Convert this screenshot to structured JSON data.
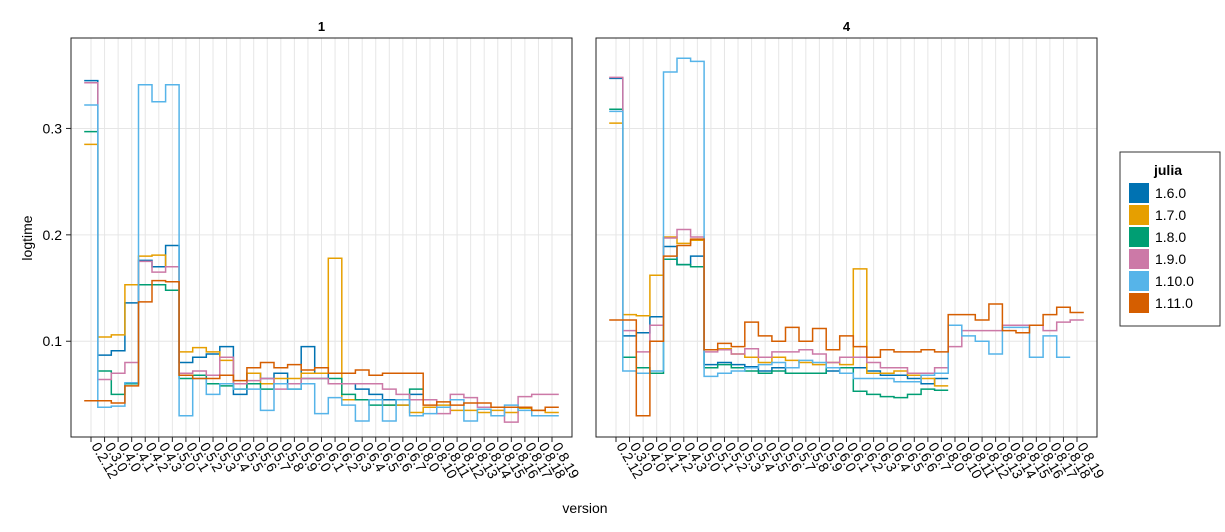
{
  "chart_data": {
    "type": "line",
    "step": true,
    "xlabel": "version",
    "ylabel": "logtime",
    "ylim": [
      0.01,
      0.385
    ],
    "yticks": [
      0.1,
      0.2,
      0.3
    ],
    "ytick_labels": [
      "0.1",
      "0.2",
      "0.3"
    ],
    "categories": [
      "0.2.12",
      "0.3.0",
      "0.4.0",
      "0.4.1",
      "0.4.2",
      "0.4.3",
      "0.5.0",
      "0.5.1",
      "0.5.2",
      "0.5.3",
      "0.5.4",
      "0.5.5",
      "0.5.6",
      "0.5.7",
      "0.5.8",
      "0.5.9",
      "0.6.0",
      "0.6.1",
      "0.6.2",
      "0.6.3",
      "0.6.4",
      "0.6.5",
      "0.6.6",
      "0.6.7",
      "0.8.0",
      "0.8.10",
      "0.8.11",
      "0.8.12",
      "0.8.13",
      "0.8.14",
      "0.8.15",
      "0.8.16",
      "0.8.17",
      "0.8.18",
      "0.8.19"
    ],
    "legend": {
      "title": "julia",
      "position": "right",
      "items": [
        {
          "label": "1.6.0",
          "color": "#0072b2"
        },
        {
          "label": "1.7.0",
          "color": "#e69f00"
        },
        {
          "label": "1.8.0",
          "color": "#009e73"
        },
        {
          "label": "1.9.0",
          "color": "#cc79a7"
        },
        {
          "label": "1.10.0",
          "color": "#56b4e9"
        },
        {
          "label": "1.11.0",
          "color": "#d55e00"
        }
      ]
    },
    "panels": [
      {
        "title": "1",
        "series": [
          {
            "name": "1.6.0",
            "values": [
              0.345,
              0.087,
              0.091,
              0.136,
              0.176,
              0.17,
              0.19,
              0.08,
              0.085,
              0.088,
              0.095,
              0.05,
              0.07,
              0.065,
              0.07,
              0.06,
              0.095,
              0.07,
              0.06,
              0.06,
              0.055,
              0.05,
              0.045,
              0.04,
              0.05,
              null,
              null,
              null,
              null,
              null,
              null,
              null,
              null,
              null,
              null
            ]
          },
          {
            "name": "1.7.0",
            "values": [
              0.285,
              0.104,
              0.106,
              0.153,
              0.18,
              0.181,
              0.17,
              0.09,
              0.094,
              0.09,
              0.082,
              0.06,
              0.07,
              0.06,
              0.065,
              0.065,
              0.07,
              0.07,
              0.178,
              0.045,
              0.045,
              0.045,
              0.04,
              0.04,
              0.033,
              0.038,
              0.04,
              0.035,
              0.035,
              0.033,
              0.035,
              0.033,
              0.037,
              0.035,
              0.033
            ]
          },
          {
            "name": "1.8.0",
            "values": [
              0.297,
              0.072,
              0.05,
              0.06,
              0.153,
              0.153,
              0.148,
              0.065,
              0.068,
              0.06,
              0.058,
              0.055,
              0.06,
              0.055,
              0.06,
              0.055,
              0.065,
              0.065,
              0.065,
              0.05,
              0.045,
              0.04,
              0.04,
              0.045,
              0.055,
              null,
              null,
              null,
              null,
              null,
              null,
              null,
              null,
              null,
              null
            ]
          },
          {
            "name": "1.9.0",
            "values": [
              0.343,
              0.064,
              0.07,
              0.08,
              0.175,
              0.165,
              0.17,
              0.07,
              0.072,
              0.068,
              0.085,
              0.06,
              0.063,
              0.065,
              0.055,
              0.06,
              0.065,
              0.065,
              0.06,
              0.06,
              0.06,
              0.06,
              0.055,
              0.05,
              0.045,
              0.045,
              0.032,
              0.05,
              0.047,
              0.038,
              0.038,
              0.024,
              0.048,
              0.05,
              0.05
            ]
          },
          {
            "name": "1.10.0",
            "values": [
              0.322,
              0.038,
              0.039,
              0.061,
              0.341,
              0.325,
              0.341,
              0.03,
              0.065,
              0.05,
              0.06,
              0.055,
              0.055,
              0.035,
              0.06,
              0.055,
              0.06,
              0.032,
              0.047,
              0.04,
              0.025,
              0.045,
              0.025,
              0.045,
              0.03,
              0.032,
              0.038,
              0.045,
              0.025,
              0.036,
              0.03,
              0.04,
              0.035,
              0.03,
              0.03
            ]
          },
          {
            "name": "1.11.0",
            "values": [
              0.044,
              0.044,
              0.042,
              0.058,
              0.137,
              0.157,
              0.156,
              0.068,
              0.065,
              0.065,
              0.068,
              0.063,
              0.075,
              0.08,
              0.075,
              0.078,
              0.073,
              0.075,
              0.07,
              0.07,
              0.073,
              0.068,
              0.07,
              0.07,
              0.07,
              0.04,
              0.043,
              0.04,
              0.042,
              0.042,
              0.038,
              0.038,
              0.038,
              0.035,
              0.038
            ]
          }
        ]
      },
      {
        "title": "4",
        "series": [
          {
            "name": "1.6.0",
            "values": [
              0.347,
              0.105,
              0.108,
              0.123,
              0.189,
              0.172,
              0.18,
              0.078,
              0.08,
              0.078,
              0.076,
              0.072,
              0.075,
              0.07,
              0.07,
              0.07,
              0.072,
              0.075,
              0.075,
              0.072,
              0.068,
              0.068,
              0.065,
              0.06,
              0.065,
              null,
              null,
              null,
              null,
              null,
              null,
              null,
              null,
              null,
              null
            ]
          },
          {
            "name": "1.7.0",
            "values": [
              0.305,
              0.125,
              0.124,
              0.162,
              0.198,
              0.192,
              0.195,
              0.092,
              0.093,
              0.088,
              0.085,
              0.08,
              0.085,
              0.082,
              0.08,
              0.078,
              0.08,
              0.078,
              0.168,
              0.07,
              0.07,
              0.072,
              0.068,
              0.065,
              0.058,
              null,
              null,
              null,
              null,
              null,
              null,
              null,
              null,
              null,
              null
            ]
          },
          {
            "name": "1.8.0",
            "values": [
              0.318,
              0.085,
              0.075,
              0.07,
              0.177,
              0.172,
              0.17,
              0.075,
              0.078,
              0.075,
              0.072,
              0.07,
              0.072,
              0.07,
              0.07,
              0.07,
              0.075,
              0.075,
              0.053,
              0.05,
              0.048,
              0.047,
              0.05,
              0.055,
              0.054,
              null,
              null,
              null,
              null,
              null,
              null,
              null,
              null,
              null,
              null
            ]
          },
          {
            "name": "1.9.0",
            "values": [
              0.348,
              0.11,
              0.09,
              0.115,
              0.197,
              0.205,
              0.198,
              0.09,
              0.092,
              0.088,
              0.093,
              0.085,
              0.09,
              0.09,
              0.092,
              0.088,
              0.08,
              0.085,
              0.085,
              0.08,
              0.075,
              0.075,
              0.07,
              0.07,
              0.075,
              0.095,
              0.11,
              0.11,
              0.11,
              0.115,
              0.115,
              0.115,
              0.11,
              0.118,
              0.12
            ]
          },
          {
            "name": "1.10.0",
            "values": [
              0.316,
              0.072,
              0.07,
              0.072,
              0.353,
              0.366,
              0.363,
              0.067,
              0.07,
              0.072,
              0.075,
              0.078,
              0.08,
              0.075,
              0.082,
              0.08,
              0.075,
              0.07,
              0.065,
              0.065,
              0.065,
              0.062,
              0.062,
              0.068,
              0.07,
              0.115,
              0.105,
              0.1,
              0.088,
              0.113,
              0.113,
              0.085,
              0.105,
              0.085,
              null
            ]
          },
          {
            "name": "1.11.0",
            "values": [
              0.12,
              0.12,
              0.03,
              0.1,
              0.18,
              0.19,
              0.196,
              0.092,
              0.098,
              0.095,
              0.118,
              0.105,
              0.1,
              0.113,
              0.1,
              0.112,
              0.092,
              0.105,
              0.095,
              0.085,
              0.092,
              0.09,
              0.09,
              0.092,
              0.09,
              0.125,
              0.125,
              0.12,
              0.135,
              0.11,
              0.108,
              0.115,
              0.125,
              0.132,
              0.127
            ]
          }
        ]
      }
    ]
  }
}
